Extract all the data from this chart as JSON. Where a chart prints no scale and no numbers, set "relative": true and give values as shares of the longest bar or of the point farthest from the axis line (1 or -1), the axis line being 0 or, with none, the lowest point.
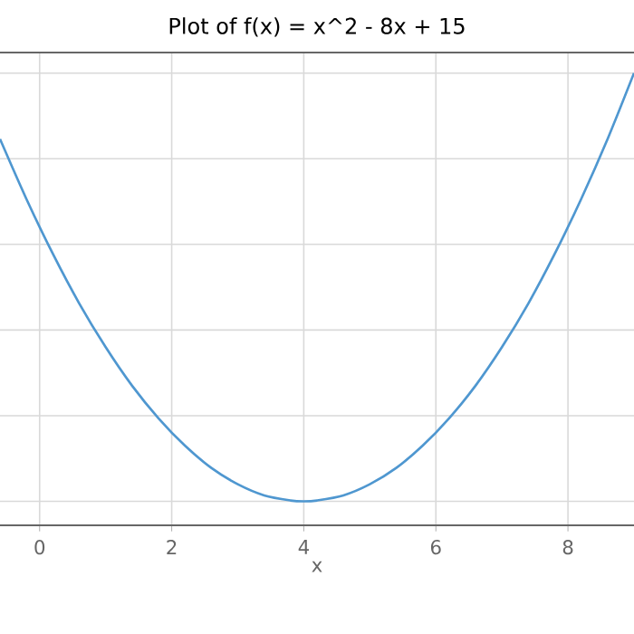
{
  "chart_data": {
    "type": "line",
    "title": "Plot of f(x) = x^2 - 8x + 15",
    "xlabel": "x",
    "relative": true,
    "x": [
      -0.6,
      -0.2,
      0.2,
      0.6,
      1.0,
      1.4,
      1.8,
      2.2,
      2.6,
      3.0,
      3.4,
      3.8,
      4.0,
      4.2,
      4.6,
      5.0,
      5.4,
      5.8,
      6.2,
      6.6,
      7.0,
      7.4,
      7.8,
      8.2,
      8.6,
      9.0
    ],
    "series": [
      {
        "color": "#4f97d0",
        "values": [
          0.846,
          0.706,
          0.578,
          0.462,
          0.36,
          0.27,
          0.194,
          0.13,
          0.078,
          0.04,
          0.014,
          0.002,
          0.0,
          0.002,
          0.014,
          0.04,
          0.078,
          0.13,
          0.194,
          0.27,
          0.36,
          0.462,
          0.578,
          0.706,
          0.846,
          1.0
        ]
      }
    ],
    "xlim": [
      -0.6,
      9.0
    ],
    "xticks": [
      0,
      2,
      4,
      6,
      8
    ],
    "grid": true,
    "marker": "none",
    "line_style": "solid"
  }
}
